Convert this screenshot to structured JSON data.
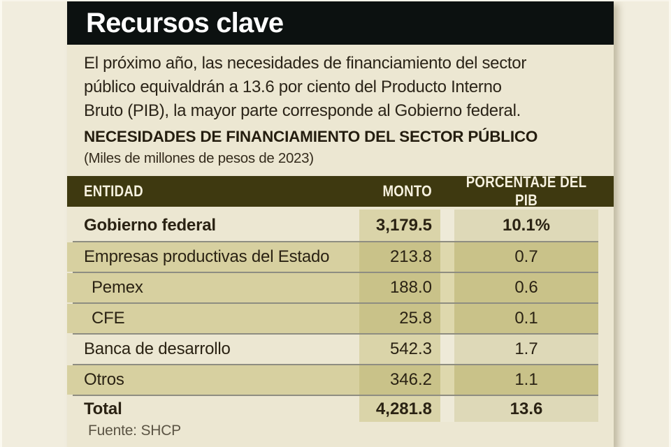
{
  "title": "Recursos clave",
  "intro": {
    "lines": [
      "El próximo año, las necesidades de financiamiento del sector",
      "público equivaldrán a 13.6 por ciento del Producto Interno",
      "Bruto (PIB), la mayor parte corresponde al Gobierno federal."
    ]
  },
  "table": {
    "title": "NECESIDADES DE FINANCIAMIENTO DEL SECTOR PÚBLICO",
    "subtitle": "(Miles de millones de pesos de 2023)",
    "columns": [
      "ENTIDAD",
      "MONTO",
      "PORCENTAJE DEL PIB"
    ],
    "rows": [
      {
        "entidad": "Gobierno federal",
        "monto": "3,179.5",
        "pib": "10.1%",
        "tone": "light",
        "emphasis": true,
        "indent": false,
        "first": true
      },
      {
        "entidad": "Empresas productivas del Estado",
        "monto": "213.8",
        "pib": "0.7",
        "tone": "khaki",
        "emphasis": false,
        "indent": false
      },
      {
        "entidad": "Pemex",
        "monto": "188.0",
        "pib": "0.6",
        "tone": "khaki",
        "emphasis": false,
        "indent": true
      },
      {
        "entidad": "CFE",
        "monto": "25.8",
        "pib": "0.1",
        "tone": "khaki",
        "emphasis": false,
        "indent": true
      },
      {
        "entidad": "Banca de desarrollo",
        "monto": "542.3",
        "pib": "1.7",
        "tone": "light",
        "emphasis": false,
        "indent": false
      },
      {
        "entidad": "Otros",
        "monto": "346.2",
        "pib": "1.1",
        "tone": "khaki",
        "emphasis": false,
        "indent": false
      },
      {
        "entidad": "Total",
        "monto": "4,281.8",
        "pib": "13.6",
        "tone": "light",
        "emphasis": true,
        "indent": false,
        "total": true
      }
    ],
    "source": "Fuente: SHCP"
  },
  "chart_data": {
    "type": "table",
    "title": "NECESIDADES DE FINANCIAMIENTO DEL SECTOR PÚBLICO",
    "subtitle": "(Miles de millones de pesos de 2023)",
    "columns": [
      "ENTIDAD",
      "MONTO",
      "PORCENTAJE DEL PIB"
    ],
    "rows": [
      [
        "Gobierno federal",
        3179.5,
        10.1
      ],
      [
        "Empresas productivas del Estado",
        213.8,
        0.7
      ],
      [
        "Pemex",
        188.0,
        0.6
      ],
      [
        "CFE",
        25.8,
        0.1
      ],
      [
        "Banca de desarrollo",
        542.3,
        1.7
      ],
      [
        "Otros",
        346.2,
        1.1
      ],
      [
        "Total",
        4281.8,
        13.6
      ]
    ],
    "units": "Miles de millones de pesos de 2023",
    "source": "Fuente: SHCP",
    "kicker": "Recursos clave"
  },
  "colors": {
    "outer": "#f1edde",
    "panel": "#ece7d2",
    "bar": "#0c1110",
    "headerRow": "#3e3910",
    "headerText": "#f6f1df",
    "khaki": "#d7d0a0",
    "khakiCol": "#c9c289",
    "khakiGap": "#ded8ad",
    "lightMonto": "#dad4a9",
    "lightPct": "#ded9b8",
    "lightGap": "#eeead8",
    "divider": "#8e8d81",
    "source": "#5b5444"
  }
}
